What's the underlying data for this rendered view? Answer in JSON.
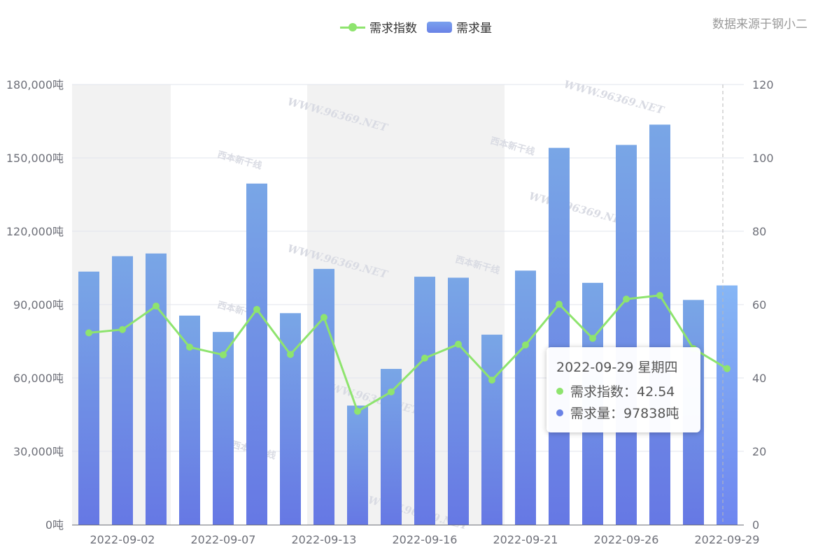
{
  "source_text": "数据来源于钢小二",
  "legend": [
    {
      "name": "需求指数",
      "color": "#8ee46e",
      "shape": "line"
    },
    {
      "name": "需求量",
      "color": "#6a82e6",
      "shape": "bar"
    }
  ],
  "watermark": {
    "url": "WWW.96369.NET",
    "brand": "西本新干线"
  },
  "tooltip": {
    "title": "2022-09-29 星期四",
    "rows": [
      {
        "label": "需求指数：42.54",
        "color": "#8ee46e"
      },
      {
        "label": "需求量：97838吨",
        "color": "#6a82e6"
      }
    ]
  },
  "chart_data": {
    "type": "bar",
    "title": "",
    "x_tick_labels": [
      "2022-09-02",
      "2022-09-07",
      "2022-09-13",
      "2022-09-16",
      "2022-09-21",
      "2022-09-26",
      "2022-09-29"
    ],
    "y_left": {
      "min": 0,
      "max": 180000,
      "ticks": [
        "0吨",
        "30,000吨",
        "60,000吨",
        "90,000吨",
        "120,000吨",
        "150,000吨",
        "180,000吨"
      ]
    },
    "y_right": {
      "min": 0,
      "max": 120,
      "ticks": [
        "0",
        "20",
        "40",
        "60",
        "80",
        "100",
        "120"
      ]
    },
    "series": [
      {
        "name": "需求量",
        "type": "bar",
        "axis": "left",
        "values": [
          103500,
          109800,
          110900,
          85500,
          78800,
          139500,
          86500,
          104600,
          48700,
          63700,
          101400,
          101000,
          77700,
          103900,
          154100,
          98900,
          155300,
          163600,
          91900,
          97838
        ]
      },
      {
        "name": "需求指数",
        "type": "line",
        "axis": "right",
        "values": [
          52.3,
          53.2,
          59.6,
          48.4,
          46.3,
          58.7,
          46.4,
          56.5,
          30.9,
          36.2,
          45.4,
          49.2,
          39.4,
          49.0,
          60.1,
          50.8,
          61.5,
          62.5,
          48.0,
          42.54
        ]
      }
    ],
    "grid": true,
    "shaded_bands_under_categories": [
      [
        0,
        1
      ],
      [
        7,
        11
      ]
    ],
    "highlighted_index": 19,
    "legend_position": "top-center"
  }
}
